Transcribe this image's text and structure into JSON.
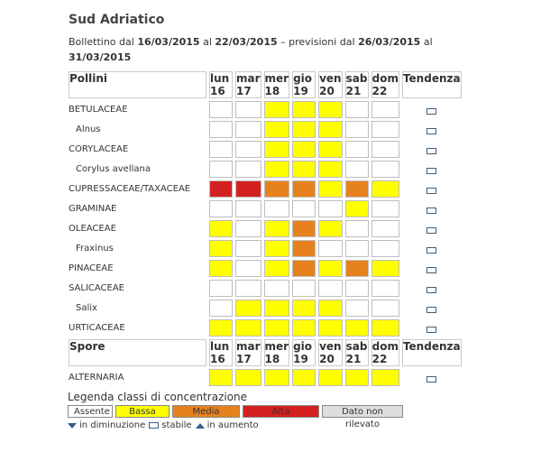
{
  "title": "Sud Adriatico",
  "subtitle": {
    "prefix": "Bollettino dal ",
    "from": "16/03/2015",
    "mid": " al ",
    "to": "22/03/2015",
    "sep": " – previsioni dal ",
    "fc_from": "26/03/2015",
    "fc_mid": " al ",
    "fc_to": "31/03/2015"
  },
  "colors": {
    "assente": "#ffffff",
    "bassa": "#ffff00",
    "media": "#e6821e",
    "alta": "#d42020",
    "nd": "#dddddd"
  },
  "days": [
    {
      "name": "lun",
      "num": "16"
    },
    {
      "name": "mar",
      "num": "17"
    },
    {
      "name": "mer",
      "num": "18"
    },
    {
      "name": "gio",
      "num": "19"
    },
    {
      "name": "ven",
      "num": "20"
    },
    {
      "name": "sab",
      "num": "21"
    },
    {
      "name": "dom",
      "num": "22"
    }
  ],
  "trend_header": "Tendenza",
  "pollini": {
    "header": "Pollini",
    "rows": [
      {
        "name": "BETULACEAE",
        "sub": false,
        "levels": [
          "assente",
          "assente",
          "bassa",
          "bassa",
          "bassa",
          "assente",
          "assente"
        ],
        "trend": "stabile"
      },
      {
        "name": "Alnus",
        "sub": true,
        "levels": [
          "assente",
          "assente",
          "bassa",
          "bassa",
          "bassa",
          "assente",
          "assente"
        ],
        "trend": "stabile"
      },
      {
        "name": "CORYLACEAE",
        "sub": false,
        "levels": [
          "assente",
          "assente",
          "bassa",
          "bassa",
          "bassa",
          "assente",
          "assente"
        ],
        "trend": "stabile"
      },
      {
        "name": "Corylus avellana",
        "sub": true,
        "levels": [
          "assente",
          "assente",
          "bassa",
          "bassa",
          "bassa",
          "assente",
          "assente"
        ],
        "trend": "stabile"
      },
      {
        "name": "CUPRESSACEAE/TAXACEAE",
        "sub": false,
        "levels": [
          "alta",
          "alta",
          "media",
          "media",
          "bassa",
          "media",
          "bassa"
        ],
        "trend": "stabile"
      },
      {
        "name": "GRAMINAE",
        "sub": false,
        "levels": [
          "assente",
          "assente",
          "assente",
          "assente",
          "assente",
          "bassa",
          "assente"
        ],
        "trend": "stabile"
      },
      {
        "name": "OLEACEAE",
        "sub": false,
        "levels": [
          "bassa",
          "assente",
          "bassa",
          "media",
          "bassa",
          "assente",
          "assente"
        ],
        "trend": "stabile"
      },
      {
        "name": "Fraxinus",
        "sub": true,
        "levels": [
          "bassa",
          "assente",
          "bassa",
          "media",
          "assente",
          "assente",
          "assente"
        ],
        "trend": "stabile"
      },
      {
        "name": "PINACEAE",
        "sub": false,
        "levels": [
          "bassa",
          "assente",
          "bassa",
          "media",
          "bassa",
          "media",
          "bassa"
        ],
        "trend": "stabile"
      },
      {
        "name": "SALICACEAE",
        "sub": false,
        "levels": [
          "assente",
          "assente",
          "assente",
          "assente",
          "assente",
          "assente",
          "assente"
        ],
        "trend": "stabile"
      },
      {
        "name": "Salix",
        "sub": true,
        "levels": [
          "assente",
          "bassa",
          "bassa",
          "bassa",
          "bassa",
          "assente",
          "assente"
        ],
        "trend": "stabile"
      },
      {
        "name": "URTICACEAE",
        "sub": false,
        "levels": [
          "bassa",
          "bassa",
          "bassa",
          "bassa",
          "bassa",
          "bassa",
          "bassa"
        ],
        "trend": "stabile"
      }
    ]
  },
  "spore": {
    "header": "Spore",
    "rows": [
      {
        "name": "ALTERNARIA",
        "sub": false,
        "levels": [
          "bassa",
          "bassa",
          "bassa",
          "bassa",
          "bassa",
          "bassa",
          "bassa"
        ],
        "trend": "stabile"
      }
    ]
  },
  "legend": {
    "title": "Legenda classi di concentrazione",
    "items": [
      {
        "key": "assente",
        "label": "Assente",
        "width": 50
      },
      {
        "key": "bassa",
        "label": "Bassa",
        "width": 60
      },
      {
        "key": "media",
        "label": "Media",
        "width": 75
      },
      {
        "key": "alta",
        "label": "Alta",
        "width": 85
      },
      {
        "key": "nd",
        "label": "Dato non rilevato",
        "width": 90
      }
    ]
  },
  "trend_legend": {
    "down": "in diminuzione",
    "stable": "stabile",
    "up": "in aumento"
  }
}
